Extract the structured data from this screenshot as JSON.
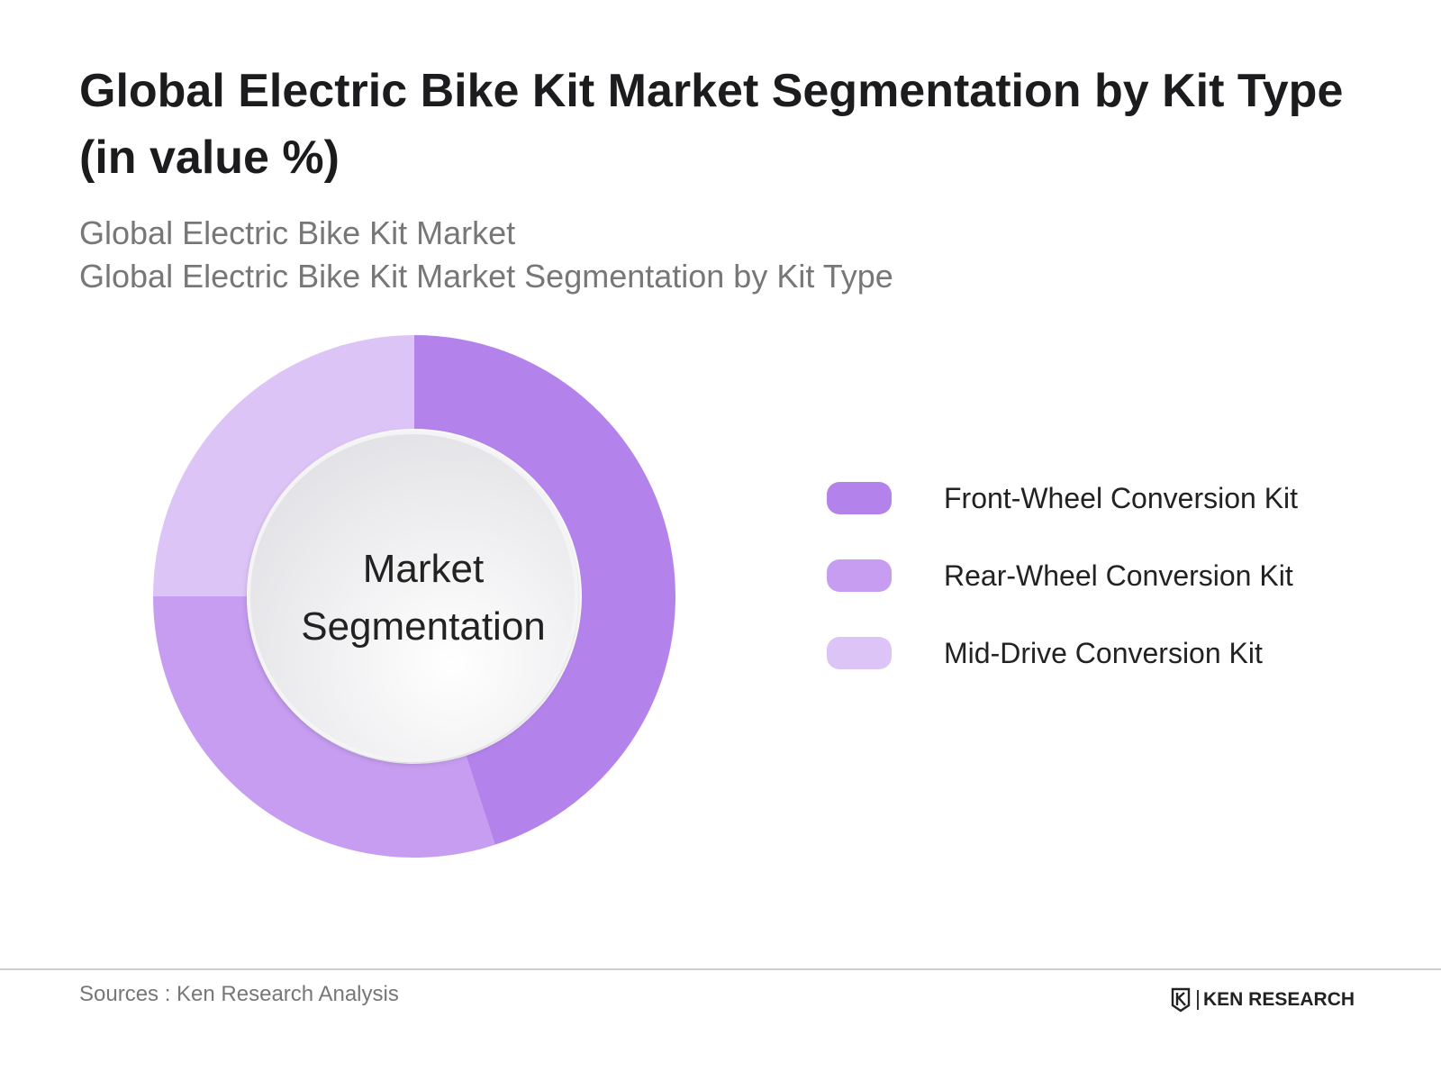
{
  "header": {
    "title": "Global Electric Bike Kit Market Segmentation by Kit Type (in value %)",
    "subtitle_line1": "Global Electric Bike Kit Market",
    "subtitle_line2": "Global Electric Bike Kit Market Segmentation by Kit Type"
  },
  "chart_data": {
    "type": "pie",
    "title": "Global Electric Bike Kit Market Segmentation by Kit Type (in value %)",
    "center_label_line1": "Market",
    "center_label_line2": "Segmentation",
    "categories": [
      "Front-Wheel Conversion Kit",
      "Rear-Wheel Conversion Kit",
      "Mid-Drive Conversion Kit"
    ],
    "values": [
      45,
      30,
      25
    ],
    "colors": [
      "#b383eb",
      "#c69df0",
      "#dcc5f6"
    ],
    "legend_position": "right",
    "donut": true
  },
  "legend": {
    "items": [
      {
        "label": "Front-Wheel Conversion Kit",
        "color": "#b383eb"
      },
      {
        "label": "Rear-Wheel Conversion Kit",
        "color": "#c69df0"
      },
      {
        "label": "Mid-Drive Conversion Kit",
        "color": "#dcc5f6"
      }
    ]
  },
  "footer": {
    "source": "Sources : Ken Research Analysis",
    "brand": "KEN RESEARCH"
  }
}
